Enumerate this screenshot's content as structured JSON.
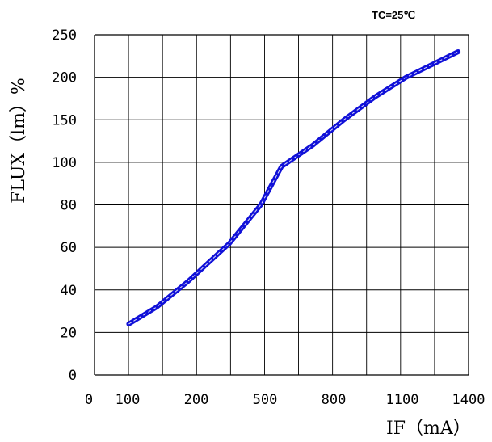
{
  "chart_data": {
    "type": "line",
    "title": "",
    "annotation": "TC=25℃",
    "xlabel": "IF（mA）",
    "ylabel": "FLUX（lm）%",
    "x_ticks": [
      "0",
      "100",
      "200",
      "500",
      "800",
      "1100",
      "1400"
    ],
    "y_ticks": [
      "0",
      "20",
      "40",
      "60",
      "80",
      "100",
      "150",
      "200",
      "250"
    ],
    "grid": true,
    "legend": "none",
    "series": [
      {
        "color": "#1010d8",
        "x": [
          55,
          100,
          150,
          250,
          400,
          500,
          650,
          800,
          950,
          1100,
          1350
        ],
        "y": [
          24,
          32,
          44,
          62,
          80,
          98,
          120,
          150,
          177,
          200,
          230
        ]
      }
    ]
  }
}
